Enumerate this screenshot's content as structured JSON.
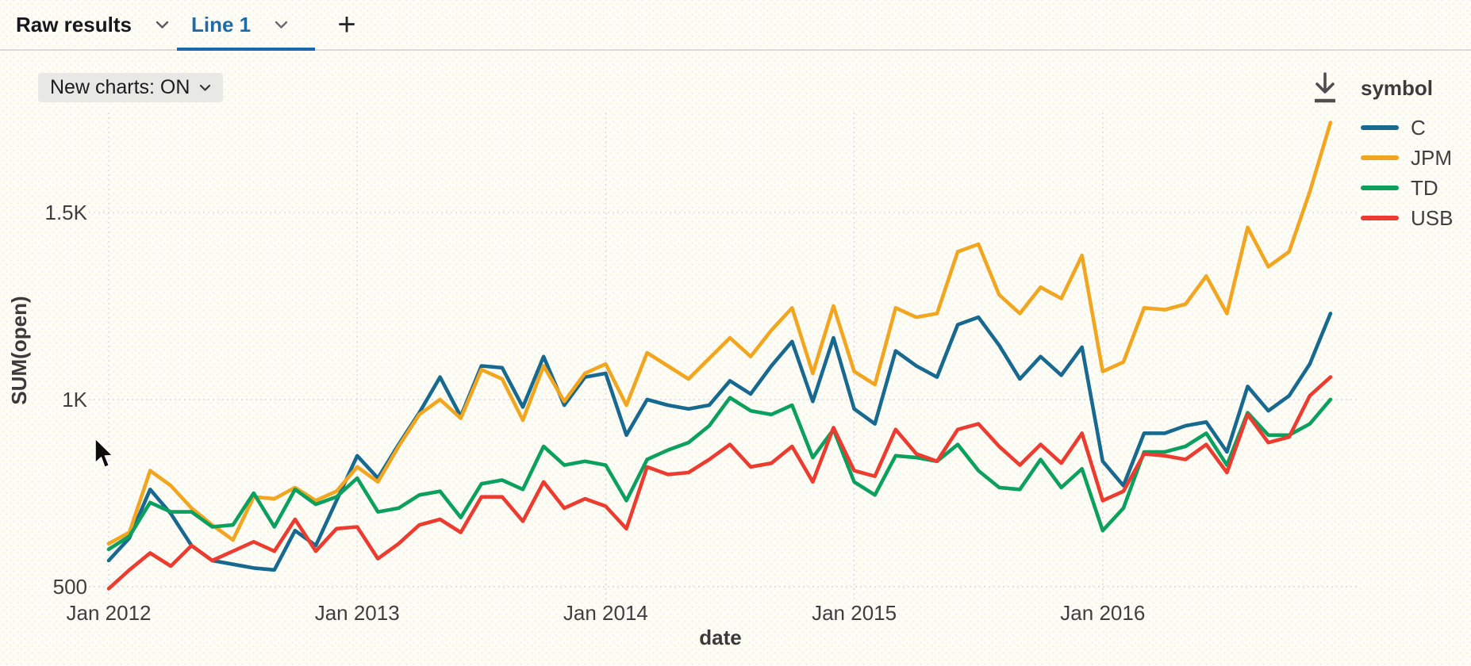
{
  "window": {
    "tabs": [
      {
        "label": "Raw results",
        "active": false
      },
      {
        "label": "Line 1",
        "active": true
      }
    ],
    "add_tab_label": "+"
  },
  "toolbar": {
    "new_charts_label": "New charts: ON"
  },
  "legend": {
    "title": "symbol",
    "items": [
      {
        "label": "C",
        "color": "#17698f"
      },
      {
        "label": "JPM",
        "color": "#f2a51f"
      },
      {
        "label": "TD",
        "color": "#0ca05f"
      },
      {
        "label": "USB",
        "color": "#ec3b2f"
      }
    ]
  },
  "colors": {
    "active_tab": "#1e6ba8",
    "tab_underline": "#1a67ab",
    "grid": "#d8d8ea",
    "tick_text": "#3e3e3e",
    "axis_title_text": "#3a3a3a"
  },
  "chart_data": {
    "type": "line",
    "xlabel": "date",
    "ylabel": "SUM(open)",
    "x_unit": "month",
    "grid": true,
    "legend_position": "right",
    "ylim": [
      460,
      1780
    ],
    "x": [
      "2012-01",
      "2012-02",
      "2012-03",
      "2012-04",
      "2012-05",
      "2012-06",
      "2012-07",
      "2012-08",
      "2012-09",
      "2012-10",
      "2012-11",
      "2012-12",
      "2013-01",
      "2013-02",
      "2013-03",
      "2013-04",
      "2013-05",
      "2013-06",
      "2013-07",
      "2013-08",
      "2013-09",
      "2013-10",
      "2013-11",
      "2013-12",
      "2014-01",
      "2014-02",
      "2014-03",
      "2014-04",
      "2014-05",
      "2014-06",
      "2014-07",
      "2014-08",
      "2014-09",
      "2014-10",
      "2014-11",
      "2014-12",
      "2015-01",
      "2015-02",
      "2015-03",
      "2015-04",
      "2015-05",
      "2015-06",
      "2015-07",
      "2015-08",
      "2015-09",
      "2015-10",
      "2015-11",
      "2015-12",
      "2016-01",
      "2016-02",
      "2016-03",
      "2016-04",
      "2016-05",
      "2016-06",
      "2016-07",
      "2016-08",
      "2016-09",
      "2016-10",
      "2016-11",
      "2016-12"
    ],
    "series": [
      {
        "name": "C",
        "color": "#17698f",
        "values": [
          570,
          630,
          760,
          695,
          610,
          570,
          560,
          550,
          545,
          650,
          610,
          730,
          850,
          790,
          880,
          965,
          1060,
          955,
          1090,
          1085,
          980,
          1115,
          985,
          1060,
          1070,
          905,
          1000,
          985,
          975,
          985,
          1050,
          1015,
          1090,
          1155,
          995,
          1165,
          975,
          935,
          1130,
          1090,
          1060,
          1200,
          1220,
          1145,
          1055,
          1115,
          1065,
          1140,
          835,
          770,
          910,
          910,
          930,
          940,
          860,
          1035,
          970,
          1010,
          1095,
          1230
        ]
      },
      {
        "name": "JPM",
        "color": "#f2a51f",
        "values": [
          615,
          645,
          810,
          770,
          710,
          665,
          625,
          740,
          735,
          765,
          730,
          755,
          820,
          780,
          875,
          960,
          1000,
          950,
          1080,
          1055,
          945,
          1090,
          995,
          1070,
          1095,
          985,
          1125,
          1090,
          1055,
          1110,
          1165,
          1115,
          1185,
          1245,
          1070,
          1250,
          1075,
          1040,
          1245,
          1220,
          1230,
          1395,
          1415,
          1280,
          1230,
          1300,
          1270,
          1385,
          1075,
          1100,
          1245,
          1240,
          1255,
          1330,
          1230,
          1460,
          1355,
          1395,
          1555,
          1740
        ]
      },
      {
        "name": "TD",
        "color": "#0ca05f",
        "values": [
          600,
          635,
          725,
          700,
          700,
          660,
          665,
          750,
          660,
          760,
          720,
          740,
          790,
          700,
          710,
          745,
          755,
          685,
          775,
          785,
          760,
          875,
          825,
          835,
          825,
          730,
          840,
          865,
          885,
          930,
          1005,
          970,
          960,
          985,
          845,
          920,
          780,
          745,
          850,
          845,
          835,
          880,
          810,
          765,
          760,
          840,
          765,
          815,
          650,
          710,
          860,
          860,
          875,
          910,
          825,
          965,
          905,
          905,
          935,
          1000
        ]
      },
      {
        "name": "USB",
        "color": "#ec3b2f",
        "values": [
          495,
          545,
          590,
          555,
          610,
          570,
          595,
          620,
          595,
          680,
          595,
          655,
          660,
          575,
          615,
          665,
          680,
          645,
          740,
          740,
          675,
          780,
          710,
          735,
          715,
          655,
          820,
          800,
          805,
          840,
          880,
          820,
          830,
          875,
          780,
          925,
          810,
          795,
          920,
          855,
          835,
          920,
          935,
          875,
          825,
          880,
          830,
          910,
          730,
          755,
          855,
          850,
          840,
          880,
          805,
          960,
          885,
          900,
          1010,
          1060
        ]
      }
    ],
    "y_ticks": [
      {
        "value": 500,
        "label": "500"
      },
      {
        "value": 1000,
        "label": "1K"
      },
      {
        "value": 1500,
        "label": "1.5K"
      }
    ],
    "x_ticks": [
      {
        "index": 0,
        "label": "Jan 2012"
      },
      {
        "index": 12,
        "label": "Jan 2013"
      },
      {
        "index": 24,
        "label": "Jan 2014"
      },
      {
        "index": 36,
        "label": "Jan 2015"
      },
      {
        "index": 48,
        "label": "Jan 2016"
      }
    ]
  }
}
